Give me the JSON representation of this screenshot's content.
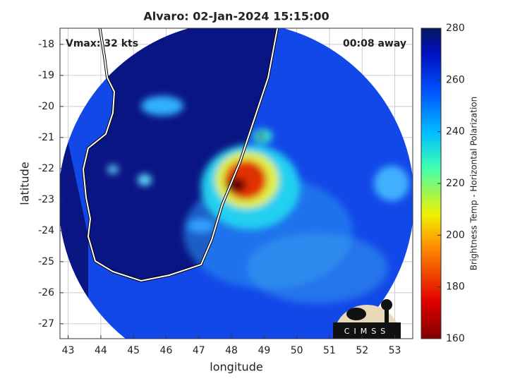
{
  "chart_data": {
    "type": "map",
    "title": "Alvaro: 02-Jan-2024 15:15:00",
    "annotations": {
      "vmax": "Vmax: 32 kts",
      "away": "00:08 away",
      "logo": "CIMSS"
    },
    "x_label": "longitude",
    "y_label": "latitude",
    "xlim": [
      42.75,
      53.55
    ],
    "xticks": [
      43,
      44,
      45,
      46,
      47,
      48,
      49,
      50,
      51,
      52,
      53
    ],
    "ylim": [
      -27.48,
      -17.48
    ],
    "yticks": [
      -18,
      -19,
      -20,
      -21,
      -22,
      -23,
      -24,
      -25,
      -26,
      -27
    ],
    "grid": true,
    "colorbar": {
      "label": "Brightness Temp - Horizontal Polarization",
      "lim": [
        160,
        280
      ],
      "ticks": [
        160,
        180,
        200,
        220,
        240,
        260,
        280
      ]
    }
  }
}
